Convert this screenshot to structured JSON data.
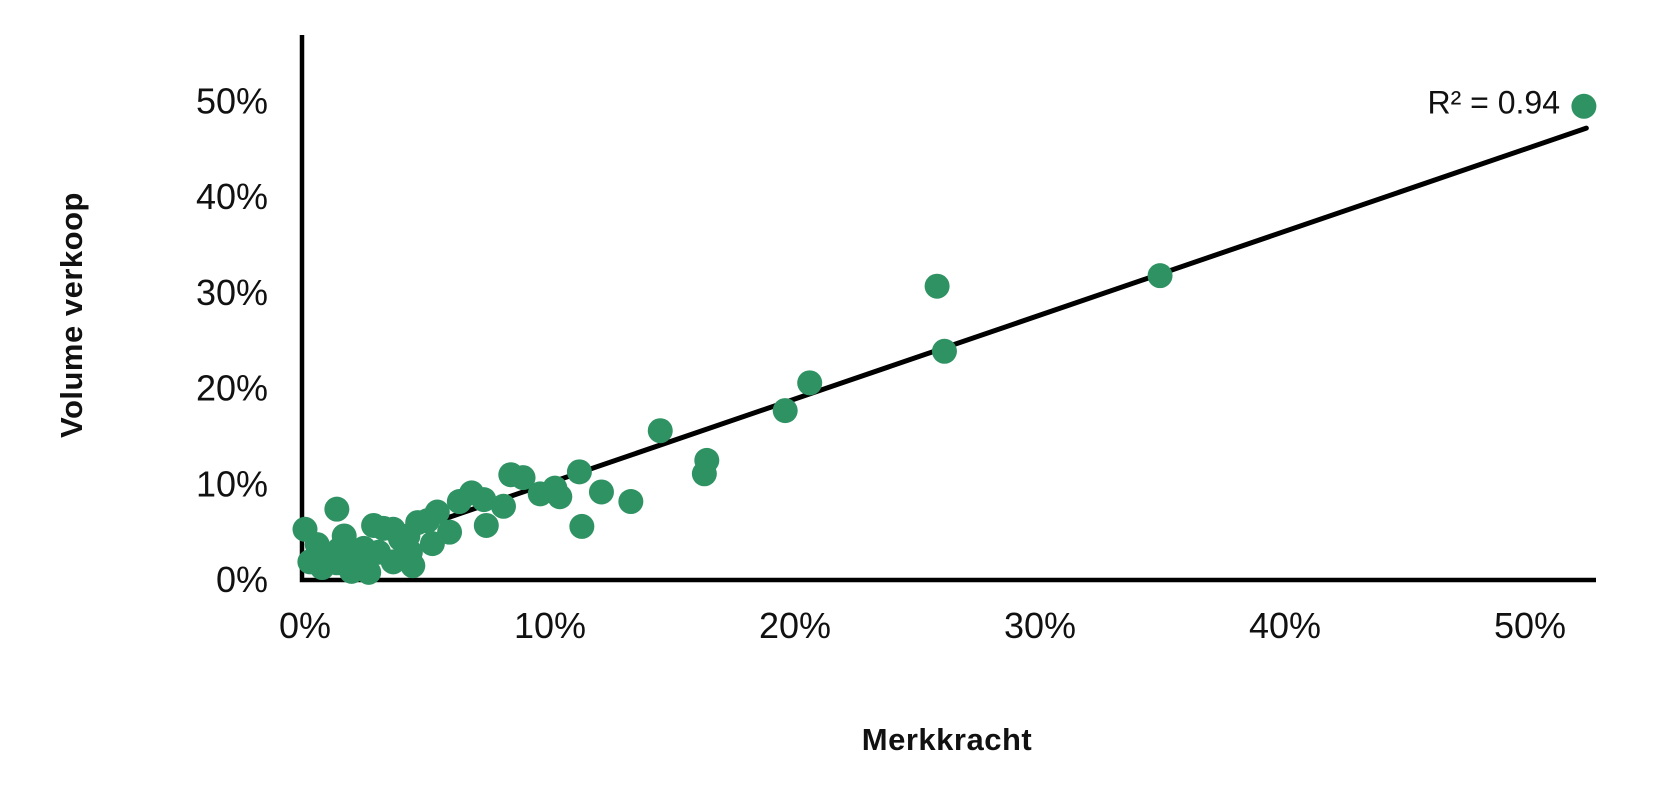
{
  "chart_data": {
    "type": "scatter",
    "title": "",
    "xlabel": "Merkkracht",
    "ylabel": "Volume verkoop",
    "x_ticks": {
      "values": [
        0,
        10,
        20,
        30,
        40,
        50
      ],
      "labels": [
        "0%",
        "10%",
        "20%",
        "30%",
        "40%",
        "50%"
      ]
    },
    "y_ticks": {
      "values": [
        0,
        10,
        20,
        30,
        40,
        50
      ],
      "labels": [
        "0%",
        "10%",
        "20%",
        "30%",
        "40%",
        "50%"
      ]
    },
    "xlim": [
      0,
      53
    ],
    "ylim": [
      0,
      57
    ],
    "grid": false,
    "legend": false,
    "point_color": "#2F9263",
    "axis_color": "#000000",
    "text_color": "#111111",
    "trendline": {
      "slope": 0.876,
      "intercept": 1.4,
      "x_start": 4.2,
      "x_end": 52.3,
      "color": "#000000",
      "r_squared_label": "R² = 0.94"
    },
    "points": [
      [
        0.0,
        5.3
      ],
      [
        0.2,
        1.9
      ],
      [
        0.5,
        3.7
      ],
      [
        0.7,
        1.3
      ],
      [
        1.0,
        2.6
      ],
      [
        1.3,
        7.4
      ],
      [
        1.4,
        3.2
      ],
      [
        1.3,
        1.8
      ],
      [
        1.6,
        4.6
      ],
      [
        1.7,
        2.4
      ],
      [
        1.9,
        0.9
      ],
      [
        2.3,
        1.4
      ],
      [
        2.4,
        3.3
      ],
      [
        2.6,
        0.8
      ],
      [
        2.8,
        5.7
      ],
      [
        3.0,
        2.9
      ],
      [
        3.2,
        5.4
      ],
      [
        3.6,
        1.9
      ],
      [
        3.6,
        5.3
      ],
      [
        3.9,
        4.3
      ],
      [
        4.2,
        4.6
      ],
      [
        4.3,
        2.9
      ],
      [
        4.4,
        1.5
      ],
      [
        4.6,
        6.0
      ],
      [
        5.0,
        6.2
      ],
      [
        5.2,
        3.8
      ],
      [
        5.4,
        7.1
      ],
      [
        5.9,
        5.0
      ],
      [
        6.3,
        8.2
      ],
      [
        6.8,
        9.1
      ],
      [
        7.3,
        8.4
      ],
      [
        7.4,
        5.7
      ],
      [
        8.1,
        7.7
      ],
      [
        8.4,
        11.0
      ],
      [
        8.9,
        10.7
      ],
      [
        9.6,
        9.0
      ],
      [
        10.2,
        9.6
      ],
      [
        10.4,
        8.7
      ],
      [
        11.2,
        11.3
      ],
      [
        11.3,
        5.6
      ],
      [
        12.1,
        9.2
      ],
      [
        13.3,
        8.2
      ],
      [
        14.5,
        15.6
      ],
      [
        16.3,
        11.1
      ],
      [
        16.4,
        12.5
      ],
      [
        19.6,
        17.7
      ],
      [
        20.6,
        20.6
      ],
      [
        25.8,
        30.7
      ],
      [
        26.1,
        23.9
      ],
      [
        34.9,
        31.8
      ],
      [
        52.2,
        49.5
      ]
    ]
  }
}
